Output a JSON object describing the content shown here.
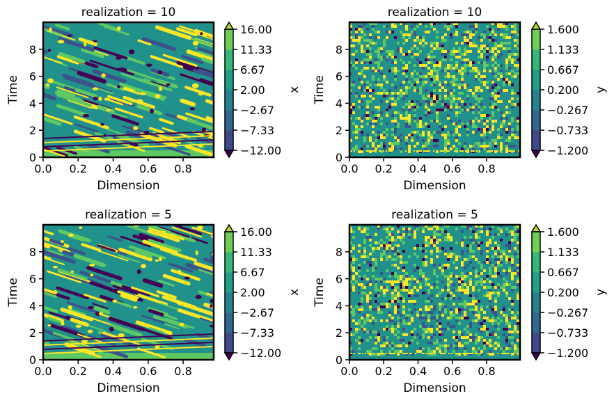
{
  "chart_data": [
    {
      "type": "heatmap",
      "title": "realization = 10",
      "xlabel": "Dimension",
      "ylabel": "Time",
      "xlim": [
        0,
        0.975
      ],
      "ylim": [
        0,
        10
      ],
      "x_ticks": [
        "0.0",
        "0.2",
        "0.4",
        "0.6",
        "0.8"
      ],
      "y_ticks": [
        "0",
        "2",
        "4",
        "6",
        "8"
      ],
      "colorbar": {
        "label": "x",
        "levels": [
          -12,
          -7.33,
          -2.67,
          2,
          6.67,
          11.33,
          16
        ],
        "tick_labels": [
          "−12.00",
          "−7.33",
          "−2.67",
          "2.00",
          "6.67",
          "11.33",
          "16.00"
        ],
        "extend": "both"
      }
    },
    {
      "type": "heatmap",
      "title": "realization = 10",
      "xlabel": "Dimension",
      "ylabel": "Time",
      "xlim": [
        0,
        0.995
      ],
      "ylim": [
        0,
        10
      ],
      "x_ticks": [
        "0.0",
        "0.2",
        "0.4",
        "0.6",
        "0.8"
      ],
      "y_ticks": [
        "0",
        "2",
        "4",
        "6",
        "8"
      ],
      "colorbar": {
        "label": "y",
        "levels": [
          -1.2,
          -0.733,
          -0.267,
          0.2,
          0.667,
          1.133,
          1.6
        ],
        "tick_labels": [
          "−1.200",
          "−0.733",
          "−0.267",
          "0.200",
          "0.667",
          "1.133",
          "1.600"
        ],
        "extend": "both"
      }
    },
    {
      "type": "heatmap",
      "title": "realization = 5",
      "xlabel": "Dimension",
      "ylabel": "Time",
      "xlim": [
        0,
        0.975
      ],
      "ylim": [
        0,
        10
      ],
      "x_ticks": [
        "0.0",
        "0.2",
        "0.4",
        "0.6",
        "0.8"
      ],
      "y_ticks": [
        "0",
        "2",
        "4",
        "6",
        "8"
      ],
      "colorbar": {
        "label": "x",
        "levels": [
          -12,
          -7.33,
          -2.67,
          2,
          6.67,
          11.33,
          16
        ],
        "tick_labels": [
          "−12.00",
          "−7.33",
          "−2.67",
          "2.00",
          "6.67",
          "11.33",
          "16.00"
        ],
        "extend": "both"
      }
    },
    {
      "type": "heatmap",
      "title": "realization = 5",
      "xlabel": "Dimension",
      "ylabel": "Time",
      "xlim": [
        0,
        0.995
      ],
      "ylim": [
        0,
        10
      ],
      "x_ticks": [
        "0.0",
        "0.2",
        "0.4",
        "0.6",
        "0.8"
      ],
      "y_ticks": [
        "0",
        "2",
        "4",
        "6",
        "8"
      ],
      "colorbar": {
        "label": "y",
        "levels": [
          -1.2,
          -0.733,
          -0.267,
          0.2,
          0.667,
          1.133,
          1.6
        ],
        "tick_labels": [
          "−1.200",
          "−0.733",
          "−0.267",
          "0.200",
          "0.667",
          "1.133",
          "1.600"
        ],
        "extend": "both"
      }
    }
  ],
  "colormap": [
    "#440154",
    "#3b528b",
    "#21918c",
    "#5ec962",
    "#fde725"
  ]
}
